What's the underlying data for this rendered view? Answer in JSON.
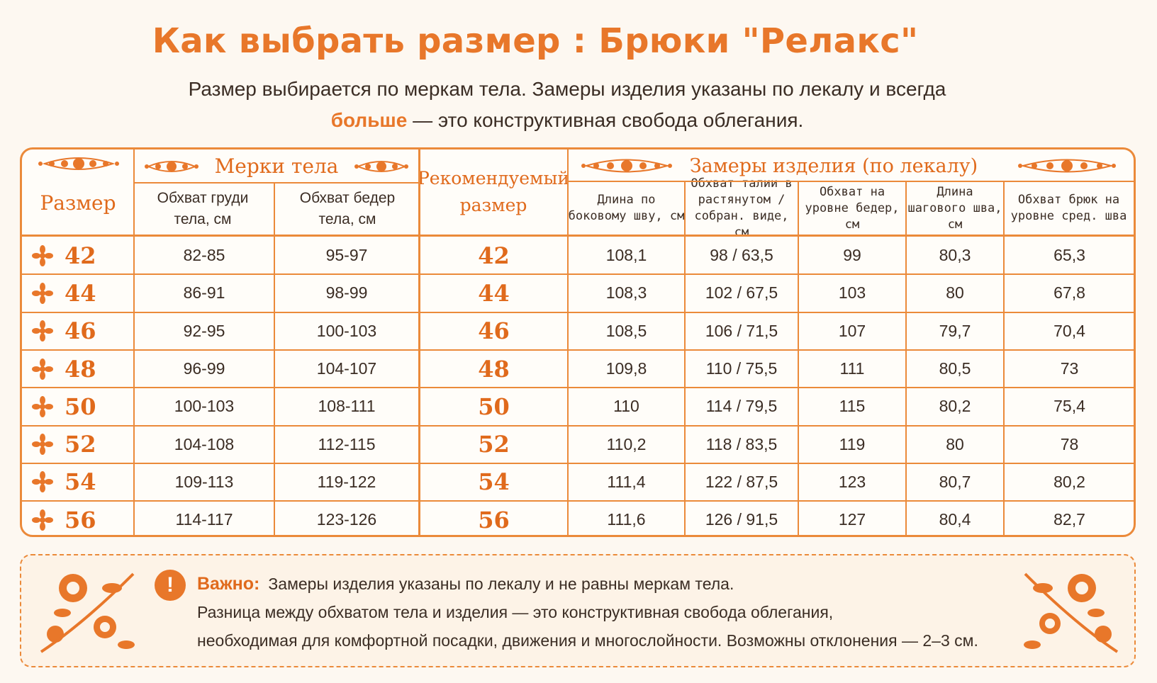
{
  "title": "Как выбрать размер : Брюки \"Релакс\"",
  "subtitle": {
    "line1": "Размер выбирается по меркам тела. Замеры изделия указаны по лекалу и всегда",
    "bold": "больше",
    "line2_rest": " — это конструктивная свобода облегания."
  },
  "table": {
    "col_size": "Размер",
    "group_body": "Мерки тела",
    "body_chest": "Обхват груди тела, см",
    "body_hips": "Обхват бедер тела, см",
    "recommended": "Рекомендуемый размер",
    "group_garment": "Замеры изделия (по лекалу)",
    "g_length": "Длина по боковому шву, см",
    "g_waist": "Обхват талии в растянутом / собран. виде, см",
    "g_hips": "Обхват на уровне бедер, см",
    "g_inseam": "Длина шагового шва, см",
    "g_leg": "Обхват брюк на уровне сред. шва",
    "rows": [
      {
        "size": "42",
        "chest": "82-85",
        "hips": "95-97",
        "rec": "42",
        "length": "108,1",
        "waist": "98 / 63,5",
        "ghips": "99",
        "inseam": "80,3",
        "leg": "65,3"
      },
      {
        "size": "44",
        "chest": "86-91",
        "hips": "98-99",
        "rec": "44",
        "length": "108,3",
        "waist": "102 / 67,5",
        "ghips": "103",
        "inseam": "80",
        "leg": "67,8"
      },
      {
        "size": "46",
        "chest": "92-95",
        "hips": "100-103",
        "rec": "46",
        "length": "108,5",
        "waist": "106 / 71,5",
        "ghips": "107",
        "inseam": "79,7",
        "leg": "70,4"
      },
      {
        "size": "48",
        "chest": "96-99",
        "hips": "104-107",
        "rec": "48",
        "length": "109,8",
        "waist": "110 / 75,5",
        "ghips": "111",
        "inseam": "80,5",
        "leg": "73"
      },
      {
        "size": "50",
        "chest": "100-103",
        "hips": "108-111",
        "rec": "50",
        "length": "110",
        "waist": "114 / 79,5",
        "ghips": "115",
        "inseam": "80,2",
        "leg": "75,4"
      },
      {
        "size": "52",
        "chest": "104-108",
        "hips": "112-115",
        "rec": "52",
        "length": "110,2",
        "waist": "118 / 83,5",
        "ghips": "119",
        "inseam": "80",
        "leg": "78"
      },
      {
        "size": "54",
        "chest": "109-113",
        "hips": "119-122",
        "rec": "54",
        "length": "111,4",
        "waist": "122 / 87,5",
        "ghips": "123",
        "inseam": "80,7",
        "leg": "80,2"
      },
      {
        "size": "56",
        "chest": "114-117",
        "hips": "123-126",
        "rec": "56",
        "length": "111,6",
        "waist": "126 / 91,5",
        "ghips": "127",
        "inseam": "80,4",
        "leg": "82,7"
      }
    ]
  },
  "note": {
    "label": "Важно:",
    "line1": "Замеры изделия указаны по лекалу и не равны меркам тела.",
    "line2": "Разница между обхватом тела и изделия — это конструктивная свобода облегания,",
    "line3": "необходимая для комфортной посадки, движения и многослойности. Возможны отклонения — 2–3 см."
  },
  "colors": {
    "accent": "#e8772a",
    "border": "#eb8a3a",
    "text": "#3b2d24",
    "bg": "#fdf8f1"
  },
  "icons": [
    "floral-ornament-icon",
    "flower-bullet-icon",
    "exclamation-icon",
    "floral-corner-icon"
  ]
}
